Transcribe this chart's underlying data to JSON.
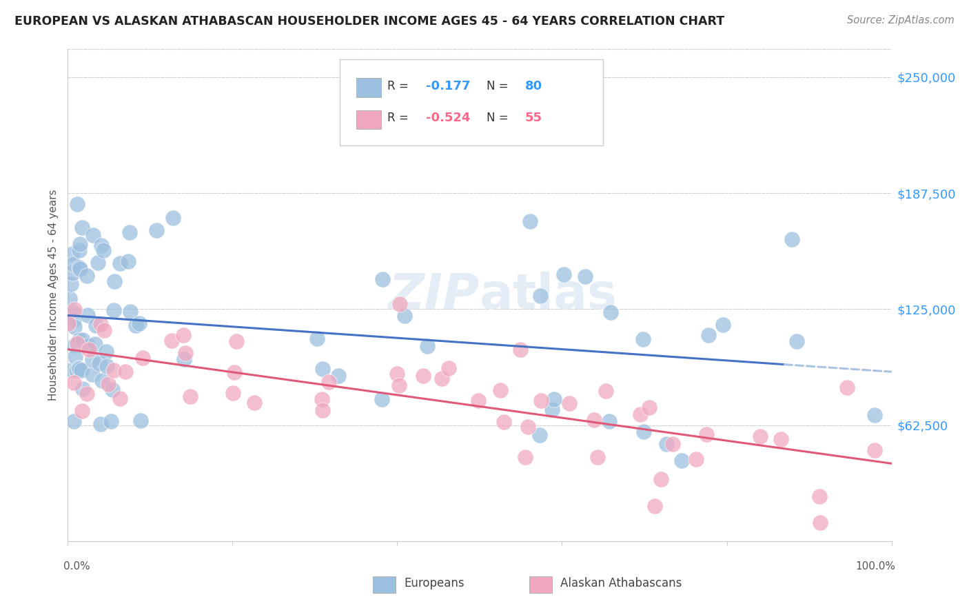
{
  "title": "EUROPEAN VS ALASKAN ATHABASCAN HOUSEHOLDER INCOME AGES 45 - 64 YEARS CORRELATION CHART",
  "source": "Source: ZipAtlas.com",
  "ylabel": "Householder Income Ages 45 - 64 years",
  "ytick_values": [
    62500,
    125000,
    187500,
    250000
  ],
  "ymin": 0,
  "ymax": 265000,
  "xmin": 0.0,
  "xmax": 1.0,
  "legend_entries": [
    {
      "label": "Europeans",
      "R": "-0.177",
      "N": "80",
      "color": "#aac4e2"
    },
    {
      "label": "Alaskan Athabascans",
      "R": "-0.524",
      "N": "55",
      "color": "#f2aabe"
    }
  ],
  "blue_scatter_color": "#9bbfde",
  "pink_scatter_color": "#f0a8be",
  "blue_line_color": "#4472c4",
  "pink_line_color": "#e05878",
  "blue_dashed_color": "#aac4e0",
  "background_color": "#ffffff",
  "grid_color": "#d0d0d0",
  "title_color": "#222222",
  "watermark_color": "#e4ecf5",
  "r_color_blue": "#3399ff",
  "r_color_pink": "#ff6688",
  "n_color_blue": "#3399ff",
  "n_color_pink": "#ff6688"
}
